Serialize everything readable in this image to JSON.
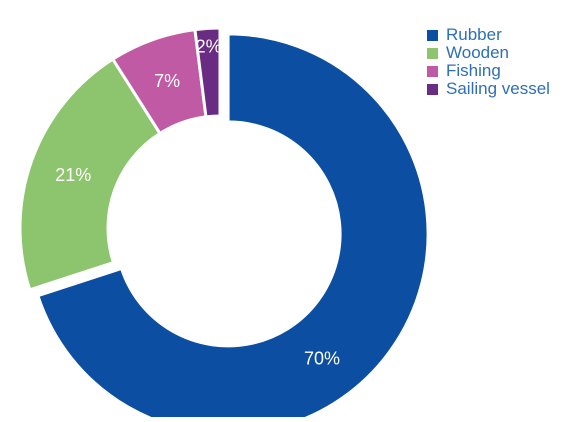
{
  "chart_data": {
    "type": "pie",
    "title": "",
    "categories": [
      "Rubber",
      "Wooden",
      "Fishing",
      "Sailing vessel"
    ],
    "values": [
      70,
      21,
      7,
      2
    ],
    "data_labels": [
      "70%",
      "21%",
      "7%",
      "2%"
    ],
    "colors": [
      "#0b4ea2",
      "#8cc56e",
      "#c05aa4",
      "#6a2c83"
    ],
    "style": "donut",
    "exploded_slice": "Rubber",
    "legend_position": "top-right",
    "legend_text_color": "#2e6fb7"
  }
}
